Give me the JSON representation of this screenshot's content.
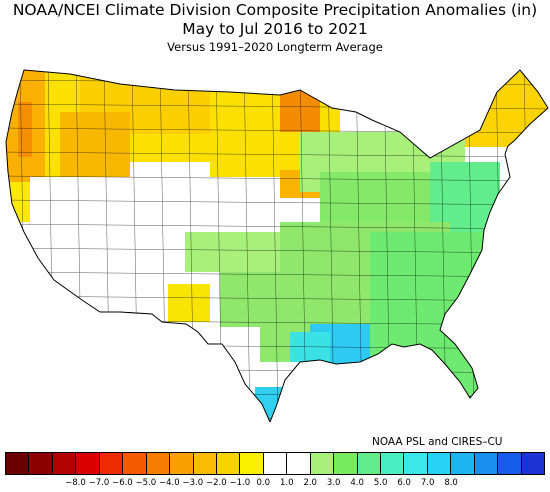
{
  "title": "NOAA/NCEI Climate Division Composite Precipitation Anomalies (in)",
  "subtitle": "May to Jul 2016 to 2021",
  "subtitle2": "Versus 1991–2020 Longterm Average",
  "credit": "NOAA PSL and CIRES–CU",
  "legend": {
    "colors": [
      "#6b0000",
      "#8c0000",
      "#b30000",
      "#d90000",
      "#ee2a00",
      "#f55a00",
      "#f77e00",
      "#f99f00",
      "#fbbb00",
      "#f9d300",
      "#fbef00",
      "#ffffff",
      "#ffffff",
      "#a8f07a",
      "#78ea5e",
      "#62ec8c",
      "#4aeec0",
      "#3ae8ea",
      "#27d2f6",
      "#1eb4f4",
      "#1a8ff0",
      "#155cea",
      "#1e33d6"
    ],
    "ticks": [
      "−8.0",
      "−7.0",
      "−6.0",
      "−5.0",
      "−4.0",
      "−3.0",
      "−2.0",
      "−1.0",
      "0.0",
      "1.0",
      "2.0",
      "3.0",
      "4.0",
      "5.0",
      "6.0",
      "7.0",
      "8.0"
    ]
  },
  "map": {
    "region": "Contiguous United States climate divisions",
    "regions": [
      {
        "name": "Pacific Northwest coast",
        "anomaly_in": -2.0,
        "color": "#f9a800"
      },
      {
        "name": "Northern Rockies / Montana",
        "anomaly_in": -1.2,
        "color": "#fbcf00"
      },
      {
        "name": "Northern Plains",
        "anomaly_in": -0.9,
        "color": "#fbe000"
      },
      {
        "name": "Northern Minnesota",
        "anomaly_in": -2.5,
        "color": "#f48c00"
      },
      {
        "name": "Iowa",
        "anomaly_in": -1.5,
        "color": "#f9b400"
      },
      {
        "name": "Northern New England",
        "anomaly_in": -1.0,
        "color": "#fbd400"
      },
      {
        "name": "California / Great Basin",
        "anomaly_in": 0.0,
        "color": "#ffffff"
      },
      {
        "name": "Central / Southern Plains",
        "anomaly_in": 1.5,
        "color": "#8fe86c"
      },
      {
        "name": "Ohio and Tennessee Valleys",
        "anomaly_in": 1.8,
        "color": "#84e868"
      },
      {
        "name": "Mid-Atlantic",
        "anomaly_in": 2.6,
        "color": "#62ec8c"
      },
      {
        "name": "Southeast",
        "anomaly_in": 2.2,
        "color": "#6eea70"
      },
      {
        "name": "Louisiana / Mississippi coast",
        "anomaly_in": 5.0,
        "color": "#2fcaf2"
      },
      {
        "name": "Upper Texas coast",
        "anomaly_in": 4.0,
        "color": "#3ae2e6"
      },
      {
        "name": "Lower Rio Grande Valley",
        "anomaly_in": 4.5,
        "color": "#2fd0f0"
      },
      {
        "name": "Southeast Arizona",
        "anomaly_in": -1.0,
        "color": "#f7e400"
      }
    ]
  }
}
